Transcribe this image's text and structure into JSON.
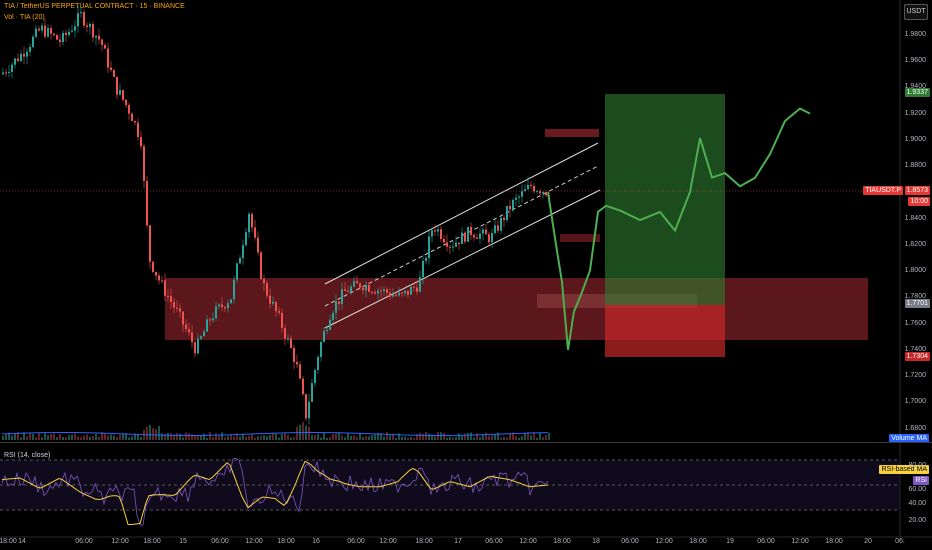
{
  "header": {
    "title": "TIA / TetherUS PERPETUAL CONTRACT · 15 · BINANCE",
    "volume_label": "Vol · TIA (20)",
    "currency_button": "USDT"
  },
  "price_axis": {
    "labels": [
      "1.9800",
      "1.9600",
      "1.9400",
      "1.9200",
      "1.9000",
      "1.8800",
      "1.8600",
      "1.8400",
      "1.8200",
      "1.8000",
      "1.7800",
      "1.7600",
      "1.7400",
      "1.7200",
      "1.7000",
      "1.6800"
    ],
    "tags": {
      "target": "1.9337",
      "symbol": "TIAUSDT.P",
      "current": "1.8573",
      "countdown": "10:00",
      "entry": "1.7701",
      "stop": "1.7304"
    }
  },
  "volume_ma_label": "Volume MA",
  "rsi": {
    "title": "RSI (14, close)",
    "based_ma_label": "RSI-based MA",
    "rsi_label": "RSI",
    "axis_labels": [
      "80.00",
      "60.00",
      "40.00",
      "20.00"
    ]
  },
  "time_axis": {
    "labels": [
      "18:00",
      "14",
      "06:00",
      "12:00",
      "18:00",
      "15",
      "06:00",
      "12:00",
      "18:00",
      "16",
      "06:00",
      "12:00",
      "18:00",
      "17",
      "06:00",
      "12:00",
      "18:00",
      "18",
      "06:00",
      "12:00",
      "18:00",
      "19",
      "06:00",
      "12:00",
      "18:00",
      "20",
      "06:"
    ]
  },
  "colors": {
    "up": "#26a69a",
    "down": "#ef5350",
    "projection": "#4caf50",
    "rsi_line": "#7e57c2",
    "rsi_ma": "#f7d23e",
    "volume_ma": "#2962ff"
  }
}
